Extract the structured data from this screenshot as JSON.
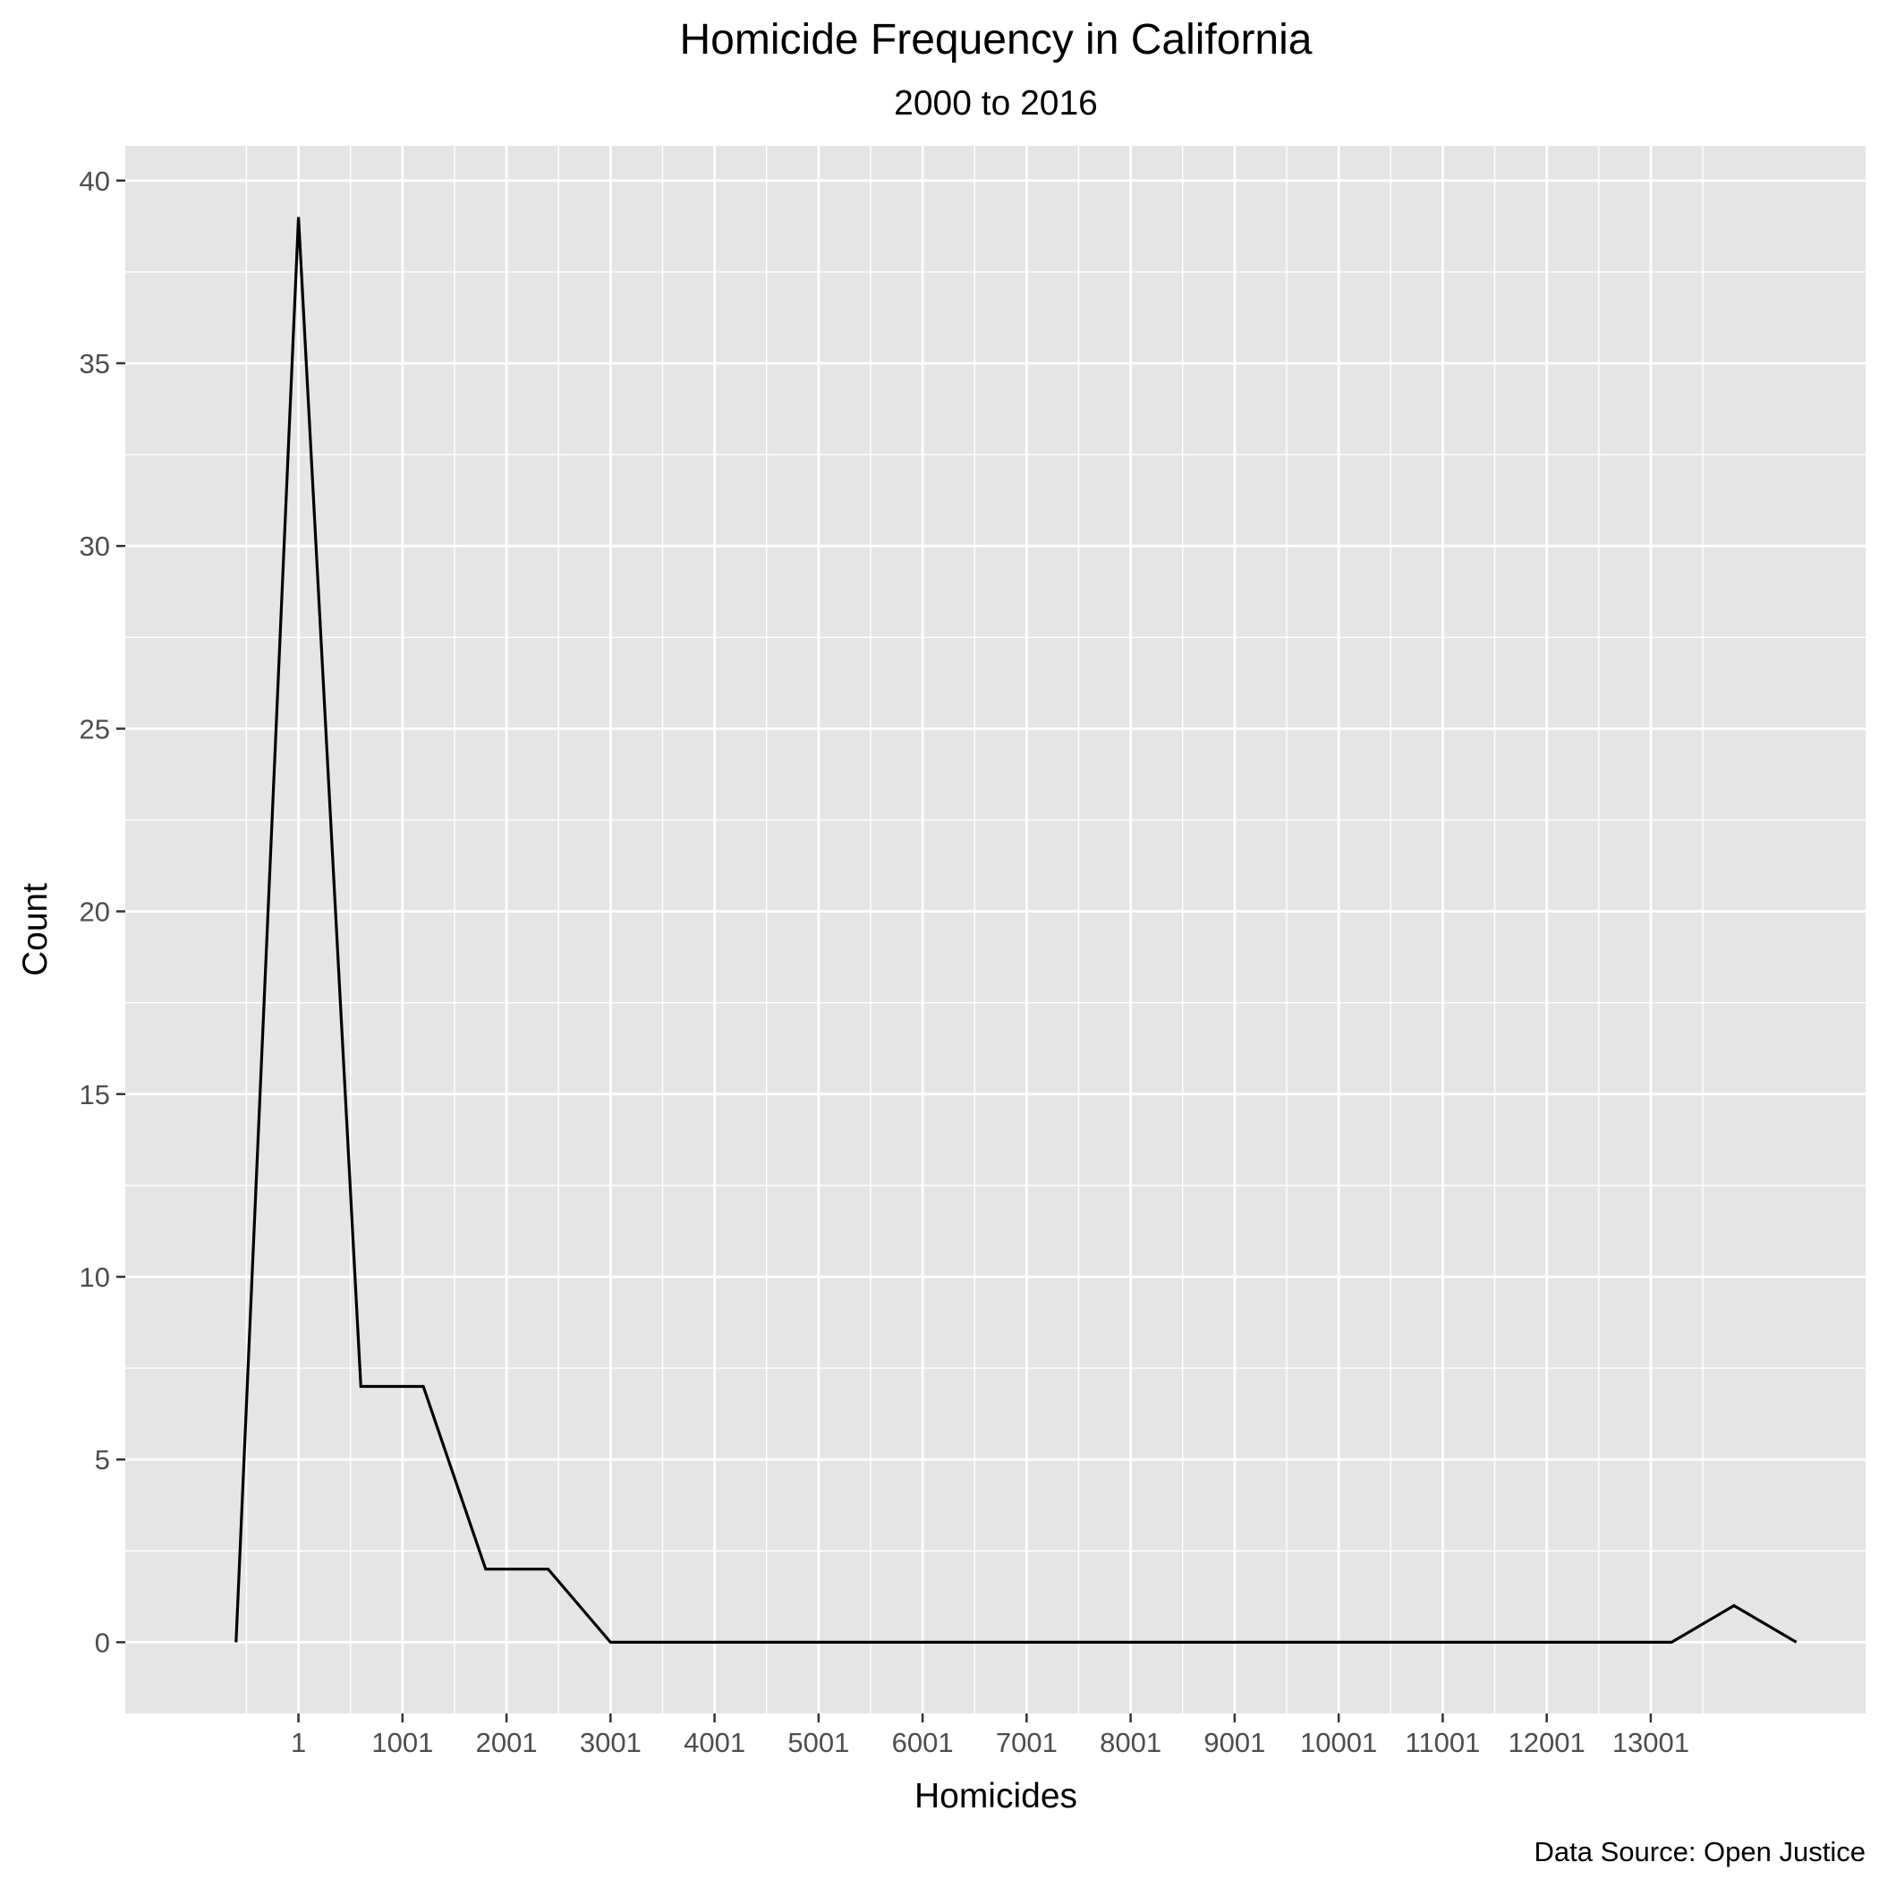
{
  "chart_data": {
    "type": "line",
    "title": "Homicide Frequency in California",
    "subtitle": "2000 to 2016",
    "xlabel": "Homicides",
    "ylabel": "Count",
    "caption": "Data Source: Open Justice",
    "xlim": [
      -1664,
      15066
    ],
    "ylim": [
      -1.95,
      40.95
    ],
    "x_ticks": [
      1,
      1001,
      2001,
      3001,
      4001,
      5001,
      6001,
      7001,
      8001,
      9001,
      10001,
      11001,
      12001,
      13001
    ],
    "x_tick_labels": [
      "1",
      "1001",
      "2001",
      "3001",
      "4001",
      "5001",
      "6001",
      "7001",
      "8001",
      "9001",
      "10001",
      "11001",
      "12001",
      "13001"
    ],
    "y_ticks": [
      0,
      5,
      10,
      15,
      20,
      25,
      30,
      35,
      40
    ],
    "y_tick_labels": [
      "0",
      "5",
      "10",
      "15",
      "20",
      "25",
      "30",
      "35",
      "40"
    ],
    "grid": true,
    "line_color": "#000000",
    "panel_color": "#e5e5e5",
    "series": [
      {
        "x": [
          -599,
          1,
          601,
          1201,
          1801,
          2401,
          3001,
          3601,
          4201,
          4801,
          5401,
          6001,
          6601,
          7201,
          7801,
          8401,
          9001,
          9601,
          10201,
          10801,
          11401,
          12001,
          12601,
          13201,
          13801,
          14401
        ],
        "y": [
          0,
          39,
          7,
          7,
          2,
          2,
          0,
          0,
          0,
          0,
          0,
          0,
          0,
          0,
          0,
          0,
          0,
          0,
          0,
          0,
          0,
          0,
          0,
          0,
          1,
          0
        ]
      }
    ]
  }
}
